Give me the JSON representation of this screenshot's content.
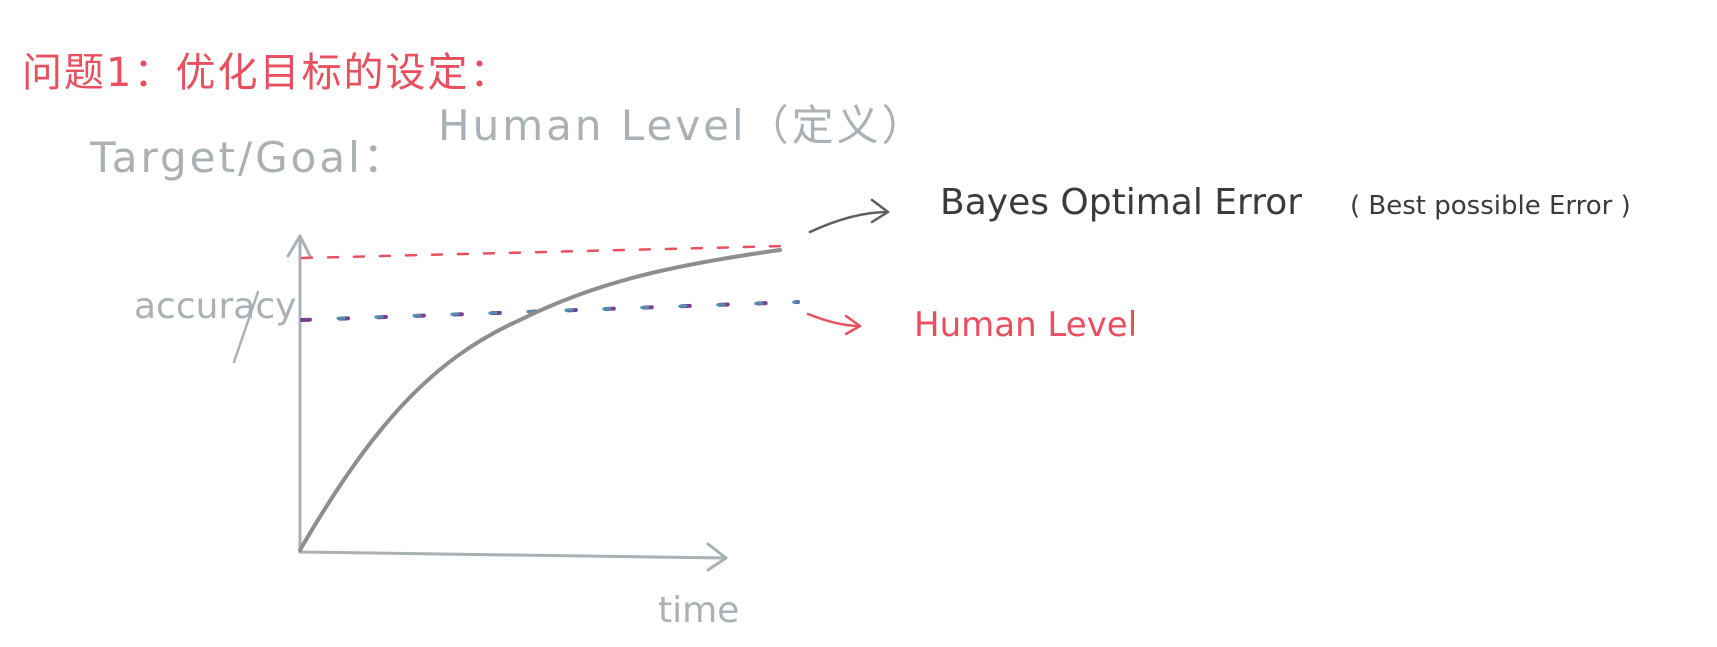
{
  "header": {
    "problem_title": "问题1：优化目标的设定：",
    "target_goal": "Target/Goal：",
    "human_level_def": "Human Level（定义）"
  },
  "annotations": {
    "bayes": "Bayes Optimal Error",
    "bayes_paren": "( Best possible Error )",
    "human_level": "Human Level"
  },
  "axes": {
    "y_label": "accuracy",
    "x_label": "time"
  },
  "colors": {
    "red_ink": "#e8505f",
    "gray_ink": "#a9b1b6",
    "dark_ink": "#3b3b3b",
    "curve": "#8e8e8e",
    "purple_dot": "#7a3f8f",
    "blue_dot": "#4f8fb0"
  }
}
